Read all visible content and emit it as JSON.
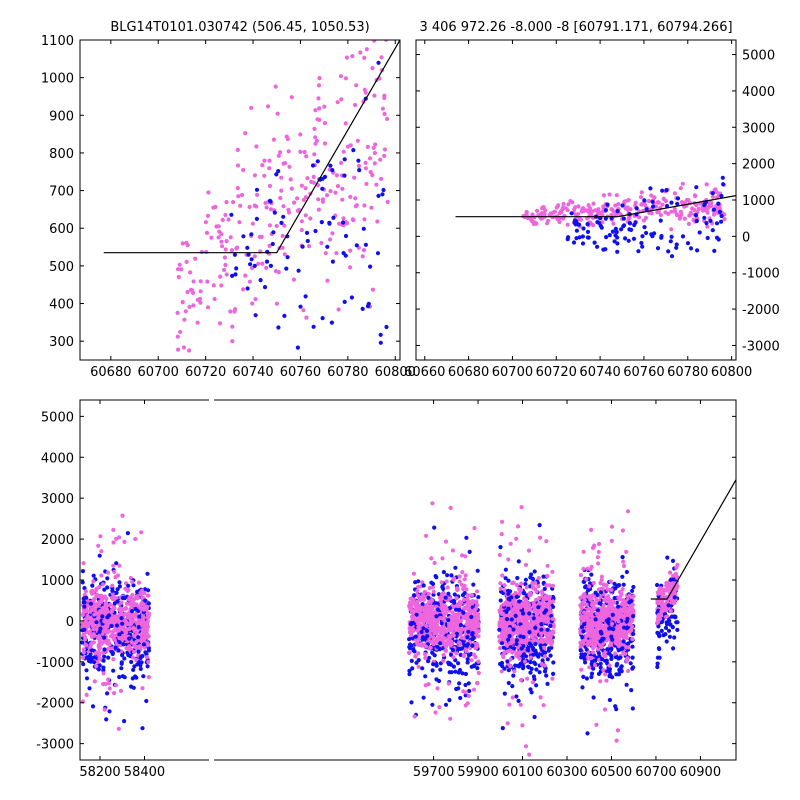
{
  "figure": {
    "panel_top_left_title": "BLG14T0101.030742 (506.45, 1050.53)",
    "panel_top_right_title": "3 406 972.26 -8.000 -8 [60791.171, 60794.266]"
  },
  "colors": {
    "series_blue": "#1010ee",
    "series_pink": "#ee66dd",
    "model_line": "#000000"
  },
  "chart_data": [
    {
      "type": "scatter",
      "title": "BLG14T0101.030742 (506.45, 1050.53)",
      "xlim": [
        60667,
        60802
      ],
      "ylim": [
        250,
        1100
      ],
      "xticks": [
        60680,
        60700,
        60720,
        60740,
        60760,
        60780,
        60800
      ],
      "yticks": [
        300,
        400,
        500,
        600,
        700,
        800,
        900,
        1000,
        1100
      ],
      "model_line": {
        "x": [
          60677,
          60750,
          60802
        ],
        "y": [
          535,
          535,
          1100
        ]
      },
      "series": [
        {
          "color": "pink",
          "cluster": {
            "x_range": [
              60708,
              60797
            ],
            "y_base_start": 430,
            "y_base_end": 900,
            "spread": 180,
            "n": 300
          }
        },
        {
          "color": "blue",
          "cluster": {
            "x_range": [
              60730,
              60797
            ],
            "y_base_start": 500,
            "y_base_end": 650,
            "spread": 190,
            "n": 90
          }
        }
      ]
    },
    {
      "type": "scatter",
      "title": "3 406 972.26 -8.000 -8 [60791.171, 60794.266]",
      "xlim": [
        60656,
        60802
      ],
      "ylim": [
        -3400,
        5400
      ],
      "xticks": [
        60660,
        60680,
        60700,
        60720,
        60740,
        60760,
        60780,
        60800
      ],
      "yticks": [
        -3000,
        -2000,
        -1000,
        0,
        1000,
        2000,
        3000,
        4000,
        5000
      ],
      "y_axis_side": "right",
      "model_line": {
        "x": [
          60674,
          60748,
          60802
        ],
        "y": [
          540,
          540,
          1120
        ]
      },
      "series": [
        {
          "color": "pink",
          "cluster": {
            "x_range": [
              60705,
              60797
            ],
            "y_base_start": 500,
            "y_base_end": 900,
            "spread": 260,
            "n": 300
          }
        },
        {
          "color": "blue",
          "cluster": {
            "x_range": [
              60725,
              60797
            ],
            "y_base_start": 100,
            "y_base_end": 500,
            "spread": 500,
            "n": 120
          }
        }
      ]
    },
    {
      "type": "scatter",
      "xlim": [
        58110,
        61060
      ],
      "ylim": [
        -3400,
        5400
      ],
      "xticks": [
        58200,
        58400,
        59700,
        59900,
        60100,
        60300,
        60500,
        60700,
        60900
      ],
      "yticks": [
        -3000,
        -2000,
        -1000,
        0,
        1000,
        2000,
        3000,
        4000,
        5000
      ],
      "model_line": {
        "x": [
          60677,
          60750,
          61060
        ],
        "y": [
          535,
          535,
          3450
        ]
      },
      "seasons": [
        {
          "x_range": [
            58120,
            58420
          ]
        },
        {
          "x_range": [
            59590,
            59905
          ]
        },
        {
          "x_range": [
            59995,
            60240
          ]
        },
        {
          "x_range": [
            60360,
            60600
          ]
        },
        {
          "x_range": [
            60705,
            60797
          ]
        }
      ],
      "series": [
        {
          "color": "pink",
          "y_center": 0,
          "spread": 500
        },
        {
          "color": "blue",
          "y_center": -200,
          "spread": 700
        }
      ]
    }
  ]
}
